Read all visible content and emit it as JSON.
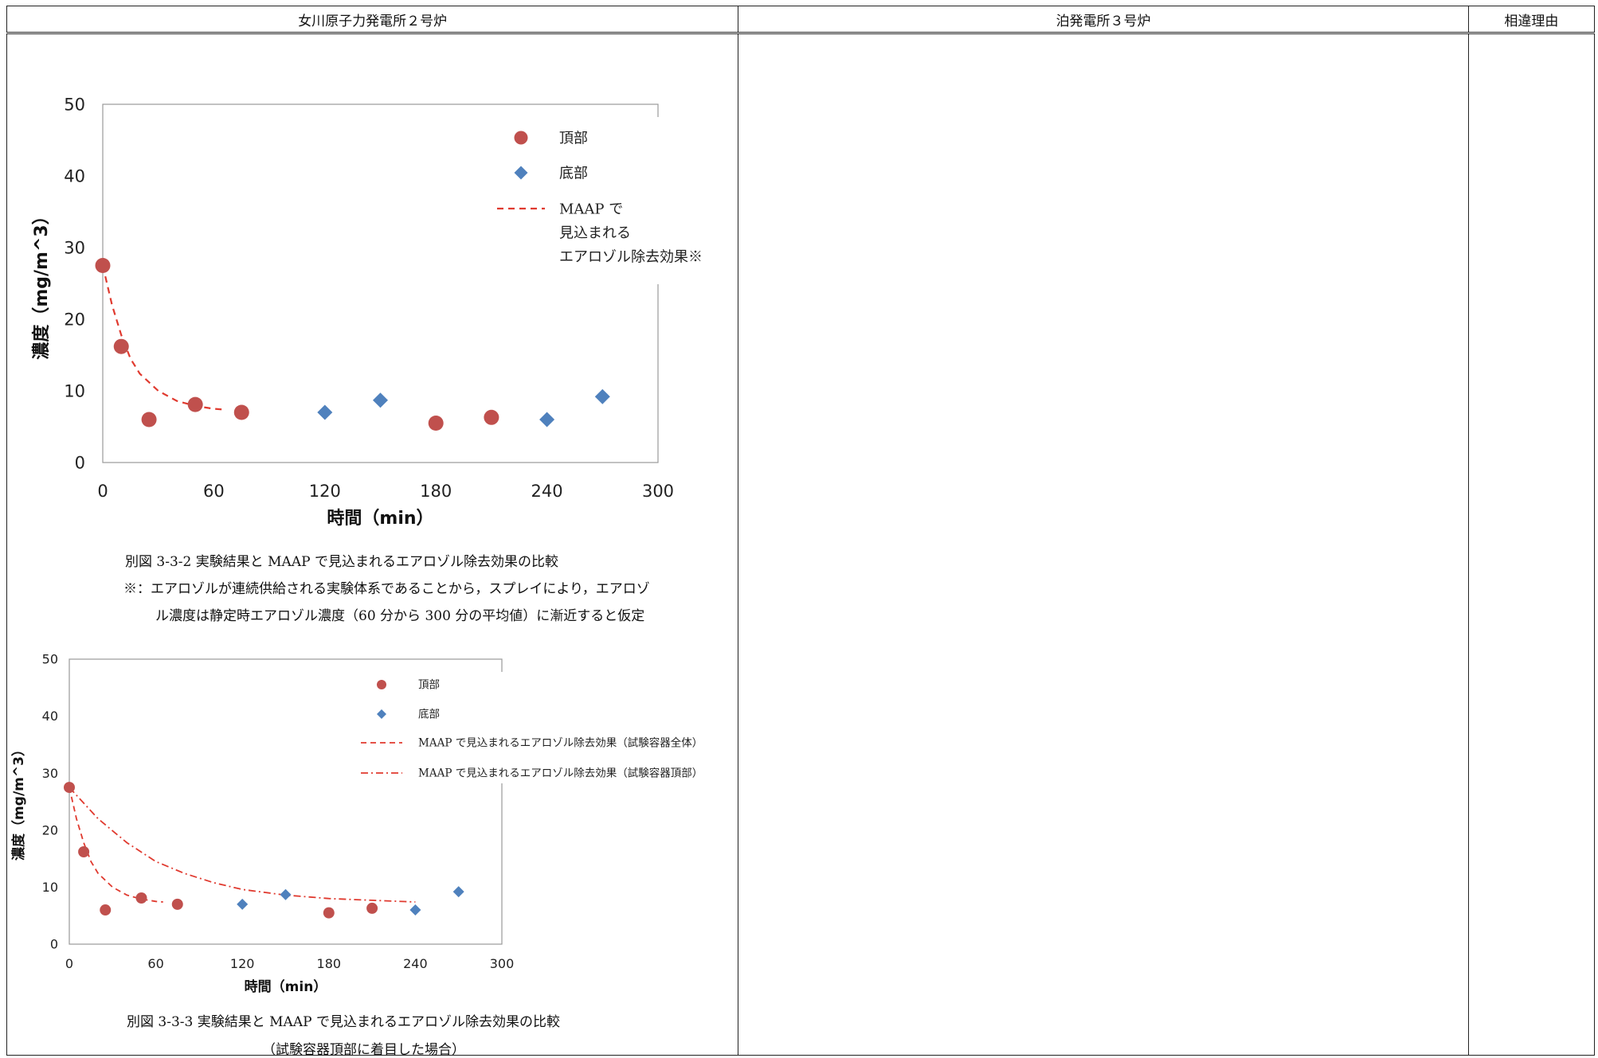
{
  "table": {
    "headers": [
      "女川原子力発電所２号炉",
      "泊発電所３号炉",
      "相違理由"
    ]
  },
  "figures": {
    "fig1": {
      "caption": "別図 3-3-2 実験結果と MAAP で見込まれるエアロゾル除去効果の比較",
      "note_line1": "※：エアロゾルが連続供給される実験体系であることから，スプレイにより，エアロゾ",
      "note_line2": "ル濃度は静定時エアロゾル濃度（60 分から 300 分の平均値）に漸近すると仮定"
    },
    "fig2": {
      "caption_line1": "別図 3-3-3 実験結果と MAAP で見込まれるエアロゾル除去効果の比較",
      "caption_line2": "（試験容器頂部に着目した場合）"
    }
  },
  "chart_data": [
    {
      "type": "scatter",
      "xlabel": "時間（min）",
      "ylabel": "濃度（mg/m^3）",
      "xlim": [
        0,
        300
      ],
      "ylim": [
        0,
        50
      ],
      "xticks": [
        0,
        60,
        120,
        180,
        240,
        300
      ],
      "yticks": [
        0,
        10,
        20,
        30,
        40,
        50
      ],
      "legend_position": "top-right",
      "legend": {
        "top_label": "頂部",
        "bottom_label": "底部",
        "maap_line1": "MAAP で",
        "maap_line2": "見込まれる",
        "maap_line3": "エアロゾル除去効果※"
      },
      "series": [
        {
          "name": "頂部",
          "marker": "circle",
          "color": "#c0504d",
          "points": [
            [
              0,
              27.5
            ],
            [
              10,
              16.2
            ],
            [
              25,
              6.0
            ],
            [
              50,
              8.1
            ],
            [
              75,
              7.0
            ],
            [
              180,
              5.5
            ],
            [
              210,
              6.3
            ]
          ]
        },
        {
          "name": "底部",
          "marker": "diamond",
          "color": "#4f81bd",
          "points": [
            [
              120,
              7.0
            ],
            [
              150,
              8.7
            ],
            [
              240,
              6.0
            ],
            [
              270,
              9.2
            ]
          ]
        },
        {
          "name": "MAAP で見込まれるエアロゾル除去効果※",
          "style": "dashed",
          "color": "#e03a2f",
          "points": [
            [
              0,
              27.5
            ],
            [
              5,
              22.0
            ],
            [
              10,
              17.8
            ],
            [
              15,
              14.5
            ],
            [
              20,
              12.4
            ],
            [
              30,
              10.0
            ],
            [
              40,
              8.6
            ],
            [
              50,
              7.9
            ],
            [
              60,
              7.5
            ],
            [
              65,
              7.4
            ]
          ]
        }
      ]
    },
    {
      "type": "scatter",
      "xlabel": "時間（min）",
      "ylabel": "濃度（mg/m^3）",
      "xlim": [
        0,
        300
      ],
      "ylim": [
        0,
        50
      ],
      "xticks": [
        0,
        60,
        120,
        180,
        240,
        300
      ],
      "yticks": [
        0,
        10,
        20,
        30,
        40,
        50
      ],
      "legend_position": "top-right",
      "legend": {
        "top_label": "頂部",
        "bottom_label": "底部",
        "maap_all": "MAAP で見込まれるエアロゾル除去効果（試験容器全体）",
        "maap_top": "MAAP で見込まれるエアロゾル除去効果（試験容器頂部）"
      },
      "series": [
        {
          "name": "頂部",
          "marker": "circle",
          "color": "#c0504d",
          "points": [
            [
              0,
              27.5
            ],
            [
              10,
              16.2
            ],
            [
              25,
              6.0
            ],
            [
              50,
              8.1
            ],
            [
              75,
              7.0
            ],
            [
              180,
              5.5
            ],
            [
              210,
              6.3
            ]
          ]
        },
        {
          "name": "底部",
          "marker": "diamond",
          "color": "#4f81bd",
          "points": [
            [
              120,
              7.0
            ],
            [
              150,
              8.7
            ],
            [
              240,
              6.0
            ],
            [
              270,
              9.2
            ]
          ]
        },
        {
          "name": "MAAP で見込まれるエアロゾル除去効果（試験容器全体）",
          "style": "dashed",
          "color": "#e03a2f",
          "points": [
            [
              0,
              27.5
            ],
            [
              5,
              22.0
            ],
            [
              10,
              17.8
            ],
            [
              15,
              14.5
            ],
            [
              20,
              12.4
            ],
            [
              30,
              10.0
            ],
            [
              40,
              8.6
            ],
            [
              50,
              7.9
            ],
            [
              60,
              7.5
            ],
            [
              65,
              7.4
            ]
          ]
        },
        {
          "name": "MAAP で見込まれるエアロゾル除去効果（試験容器頂部）",
          "style": "dashdot",
          "color": "#e03a2f",
          "points": [
            [
              0,
              27.5
            ],
            [
              20,
              22.0
            ],
            [
              40,
              17.8
            ],
            [
              60,
              14.5
            ],
            [
              80,
              12.4
            ],
            [
              100,
              10.8
            ],
            [
              120,
              9.6
            ],
            [
              150,
              8.6
            ],
            [
              180,
              8.0
            ],
            [
              210,
              7.7
            ],
            [
              240,
              7.4
            ]
          ]
        }
      ]
    }
  ]
}
